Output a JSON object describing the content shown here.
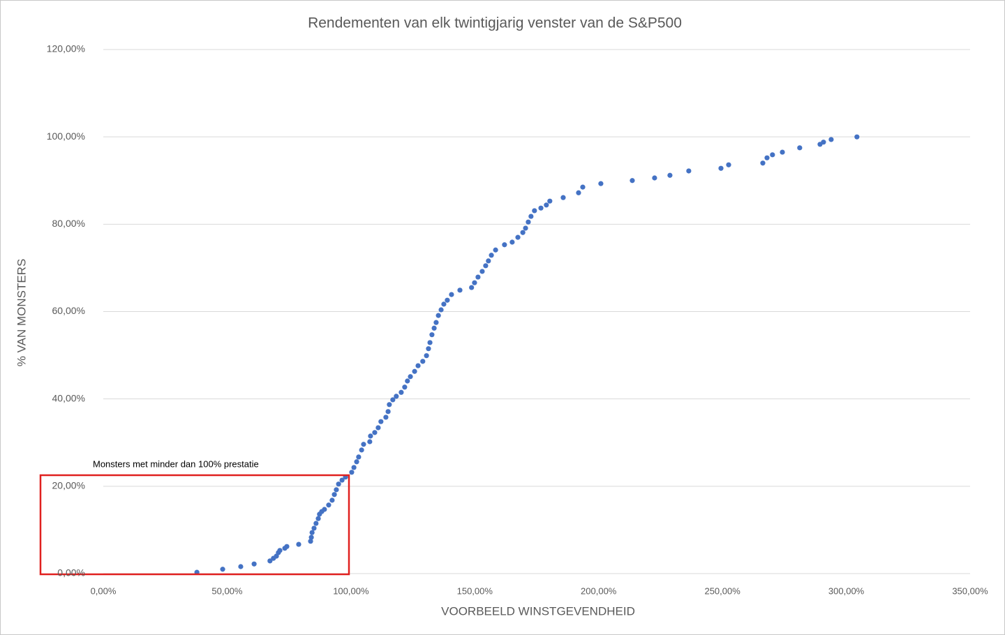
{
  "chart_data": {
    "type": "scatter",
    "title": "Rendementen van elk twintigjarig venster van de S&P500",
    "x_label": "VOORBEELD WINSTGEVENDHEID",
    "y_label": "% VAN MONSTERS",
    "annotation": "Monsters met minder dan 100% prestatie",
    "color": "#4472c4",
    "grid": true,
    "xlim": [
      0,
      350
    ],
    "ylim": [
      0,
      120
    ],
    "xticks": [
      {
        "value": 0,
        "label": "0,00%"
      },
      {
        "value": 50,
        "label": "50,00%"
      },
      {
        "value": 100,
        "label": "100,00%"
      },
      {
        "value": 150,
        "label": "150,00%"
      },
      {
        "value": 200,
        "label": "200,00%"
      },
      {
        "value": 250,
        "label": "250,00%"
      },
      {
        "value": 300,
        "label": "300,00%"
      },
      {
        "value": 350,
        "label": "350,00%"
      }
    ],
    "yticks": [
      {
        "value": 0,
        "label": "0,00%"
      },
      {
        "value": 20,
        "label": "20,00%"
      },
      {
        "value": 40,
        "label": "40,00%"
      },
      {
        "value": 60,
        "label": "60,00%"
      },
      {
        "value": 80,
        "label": "80,00%"
      },
      {
        "value": 100,
        "label": "100,00%"
      },
      {
        "value": 120,
        "label": "120,00%"
      }
    ],
    "x": [
      37.8,
      48.2,
      55.5,
      60.9,
      67.3,
      68.7,
      69.9,
      70.7,
      71.3,
      73.3,
      74.1,
      78.9,
      83.7,
      84.0,
      84.3,
      85.1,
      85.9,
      86.8,
      87.3,
      88.2,
      89.3,
      91.0,
      92.4,
      93.3,
      94.1,
      95.0,
      96.4,
      97.8,
      100.3,
      101.2,
      102.3,
      103.1,
      104.3,
      105.1,
      107.6,
      107.9,
      109.6,
      111.0,
      112.1,
      114.1,
      115.0,
      115.5,
      116.9,
      118.3,
      120.3,
      121.7,
      122.8,
      124.0,
      125.7,
      127.1,
      129.0,
      130.5,
      131.3,
      131.9,
      132.7,
      133.6,
      134.4,
      135.3,
      136.4,
      137.5,
      138.9,
      140.6,
      144.0,
      148.7,
      149.9,
      151.3,
      153.0,
      154.4,
      155.5,
      156.7,
      158.4,
      162.0,
      165.1,
      167.4,
      169.4,
      170.5,
      171.6,
      172.7,
      174.1,
      176.7,
      178.9,
      180.3,
      185.7,
      191.9,
      193.6,
      200.9,
      213.6,
      222.6,
      228.8,
      236.4,
      249.4,
      252.5,
      266.3,
      268.0,
      270.2,
      274.2,
      281.2,
      289.4,
      290.8,
      293.9,
      304.3
    ],
    "values": [
      0.3,
      1.0,
      1.6,
      2.2,
      2.9,
      3.5,
      4.0,
      4.8,
      5.3,
      5.8,
      6.2,
      6.7,
      7.4,
      8.3,
      9.4,
      10.4,
      11.5,
      12.6,
      13.6,
      14.2,
      14.7,
      15.7,
      16.8,
      18.1,
      19.2,
      20.5,
      21.4,
      22.1,
      23.2,
      24.3,
      25.6,
      26.7,
      28.3,
      29.6,
      30.2,
      31.5,
      32.3,
      33.4,
      34.8,
      35.8,
      37.1,
      38.7,
      39.8,
      40.6,
      41.5,
      42.7,
      44.1,
      45.1,
      46.3,
      47.6,
      48.6,
      49.9,
      51.5,
      52.9,
      54.7,
      56.2,
      57.5,
      59.1,
      60.4,
      61.7,
      62.6,
      63.9,
      64.9,
      65.5,
      66.6,
      67.9,
      69.2,
      70.5,
      71.6,
      72.9,
      74.1,
      75.3,
      75.9,
      77.0,
      78.1,
      79.1,
      80.5,
      81.8,
      83.1,
      83.7,
      84.4,
      85.3,
      86.1,
      87.2,
      88.5,
      89.3,
      90.0,
      90.6,
      91.2,
      92.2,
      92.8,
      93.6,
      94.0,
      95.2,
      95.9,
      96.5,
      97.5,
      98.3,
      98.8,
      99.4,
      100.0
    ]
  }
}
